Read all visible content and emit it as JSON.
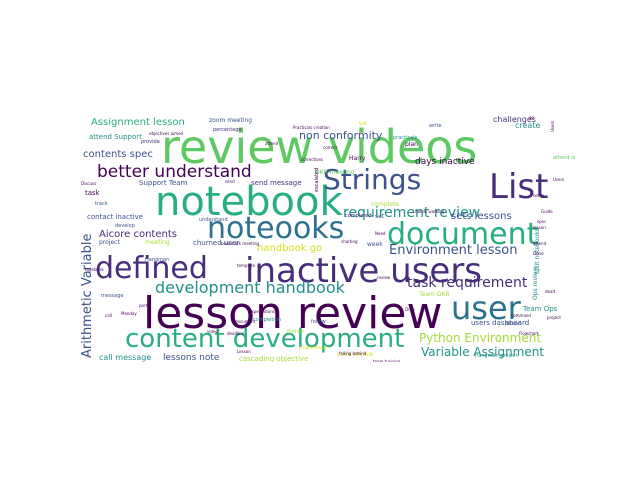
{
  "palette": {
    "green": "#5ec962",
    "lime": "#a5db36",
    "teal": "#21918c",
    "blue": "#3b528b",
    "navy": "#472d7b",
    "purple": "#440154",
    "cyan": "#2c728e",
    "seagreen": "#28ae80",
    "yellow": "#d2e21b"
  },
  "words": [
    {
      "text": "review videos",
      "color": "green"
    },
    {
      "text": "notebook",
      "color": "seagreen"
    },
    {
      "text": "lesson review",
      "color": "purple"
    },
    {
      "text": "inactive users",
      "color": "navy"
    },
    {
      "text": "Strings",
      "color": "blue"
    },
    {
      "text": "List",
      "color": "navy"
    },
    {
      "text": "document",
      "color": "seagreen"
    },
    {
      "text": "noteooks",
      "color": "cyan"
    },
    {
      "text": "defined",
      "color": "navy"
    },
    {
      "text": "user",
      "color": "cyan"
    },
    {
      "text": "content development",
      "color": "seagreen"
    },
    {
      "text": "development handbook",
      "color": "teal"
    },
    {
      "text": "better understand",
      "color": "purple"
    },
    {
      "text": "requirement review",
      "color": "teal"
    },
    {
      "text": "task requirement",
      "color": "navy"
    },
    {
      "text": "Environment lesson",
      "color": "blue"
    },
    {
      "text": "Python Environment",
      "color": "lime"
    },
    {
      "text": "Variable Assignment",
      "color": "teal"
    },
    {
      "text": "Arithmetic Variable",
      "color": "blue"
    },
    {
      "text": "Assignment lesson",
      "color": "seagreen"
    },
    {
      "text": "non conformity",
      "color": "blue"
    },
    {
      "text": "contents spec",
      "color": "blue"
    },
    {
      "text": "Aicore contents",
      "color": "navy"
    },
    {
      "text": "handbook go",
      "color": "yellow"
    },
    {
      "text": "sets lessons",
      "color": "blue"
    },
    {
      "text": "lessons note",
      "color": "blue"
    },
    {
      "text": "call message",
      "color": "teal"
    },
    {
      "text": "days inactive",
      "color": "purple"
    },
    {
      "text": "challenges",
      "color": "navy"
    },
    {
      "text": "create",
      "color": "teal"
    },
    {
      "text": "zoom meeting",
      "color": "blue"
    },
    {
      "text": "attend Support",
      "color": "teal"
    },
    {
      "text": "Support Team",
      "color": "blue"
    },
    {
      "text": "send message",
      "color": "navy"
    },
    {
      "text": "contact inactive",
      "color": "blue"
    },
    {
      "text": "churned user",
      "color": "blue"
    },
    {
      "text": "users dashboard",
      "color": "blue"
    },
    {
      "text": "Team OKR",
      "color": "lime"
    },
    {
      "text": "Team Ops",
      "color": "teal"
    },
    {
      "text": "Ops review",
      "color": "teal"
    },
    {
      "text": "split notebooks",
      "color": "teal"
    },
    {
      "text": "code review",
      "color": "yellow"
    },
    {
      "text": "cascading objective",
      "color": "lime"
    },
    {
      "text": "project",
      "color": "blue"
    },
    {
      "text": "meeting",
      "color": "lime"
    },
    {
      "text": "week",
      "color": "blue"
    },
    {
      "text": "set",
      "color": "blue"
    },
    {
      "text": "OKR meeting",
      "color": "green"
    },
    {
      "text": "task",
      "color": "purple"
    },
    {
      "text": "track",
      "color": "blue"
    },
    {
      "text": "develop",
      "color": "blue"
    },
    {
      "text": "completion",
      "color": "teal"
    },
    {
      "text": "message",
      "color": "blue"
    },
    {
      "text": "Harry",
      "color": "purple"
    },
    {
      "text": "plan",
      "color": "purple"
    },
    {
      "text": "provide",
      "color": "navy"
    },
    {
      "text": "percentage",
      "color": "navy"
    },
    {
      "text": "complete",
      "color": "lime"
    },
    {
      "text": "completed",
      "color": "navy"
    },
    {
      "text": "understand",
      "color": "blue"
    },
    {
      "text": "hangman project",
      "color": "teal"
    },
    {
      "text": "Hangman",
      "color": "blue"
    },
    {
      "text": "attend",
      "color": "blue"
    },
    {
      "text": "yet",
      "color": "yellow"
    },
    {
      "text": "write",
      "color": "blue"
    },
    {
      "text": "practicals",
      "color": "teal"
    },
    {
      "text": "escalated",
      "color": "purple"
    },
    {
      "text": "hands working",
      "color": "purple"
    },
    {
      "text": "falling behind",
      "color": "purple"
    },
    {
      "text": "deadline",
      "color": "purple"
    },
    {
      "text": "follow",
      "color": "blue"
    },
    {
      "text": "programming",
      "color": "yellow"
    },
    {
      "text": "expectations",
      "color": "purple"
    },
    {
      "text": "team training",
      "color": "purple"
    },
    {
      "text": "Practicals creation",
      "color": "purple"
    },
    {
      "text": "attend",
      "color": "purple"
    },
    {
      "text": "send",
      "color": "purple"
    },
    {
      "text": "call",
      "color": "purple"
    },
    {
      "text": "Drop",
      "color": "purple"
    },
    {
      "text": "bookmark meeting",
      "color": "purple"
    },
    {
      "text": "template",
      "color": "purple"
    },
    {
      "text": "objectives aimed",
      "color": "purple"
    },
    {
      "text": "portal",
      "color": "purple"
    },
    {
      "text": "Python",
      "color": "lime"
    },
    {
      "text": "command",
      "color": "purple"
    },
    {
      "text": "charting",
      "color": "purple"
    },
    {
      "text": "Users",
      "color": "purple"
    },
    {
      "text": "Discuss",
      "color": "purple"
    },
    {
      "text": "spec",
      "color": "purple"
    },
    {
      "text": "Flowchart",
      "color": "purple"
    },
    {
      "text": "Done",
      "color": "purple"
    },
    {
      "text": "Guide",
      "color": "purple"
    },
    {
      "text": "setup",
      "color": "purple"
    },
    {
      "text": "document",
      "color": "purple"
    },
    {
      "text": "review",
      "color": "purple"
    },
    {
      "text": "lesson",
      "color": "purple"
    },
    {
      "text": "video",
      "color": "purple"
    },
    {
      "text": "dealt",
      "color": "purple"
    },
    {
      "text": "notebook",
      "color": "purple"
    },
    {
      "text": "attend",
      "color": "purple"
    },
    {
      "text": "attend once",
      "color": "green"
    },
    {
      "text": "Lesson",
      "color": "purple"
    },
    {
      "text": "Monday",
      "color": "purple"
    },
    {
      "text": "correct",
      "color": "purple"
    },
    {
      "text": "corrections",
      "color": "purple"
    },
    {
      "text": "Users",
      "color": "purple"
    },
    {
      "text": "Need",
      "color": "purple"
    },
    {
      "text": "go",
      "color": "purple"
    },
    {
      "text": "project",
      "color": "purple"
    }
  ]
}
